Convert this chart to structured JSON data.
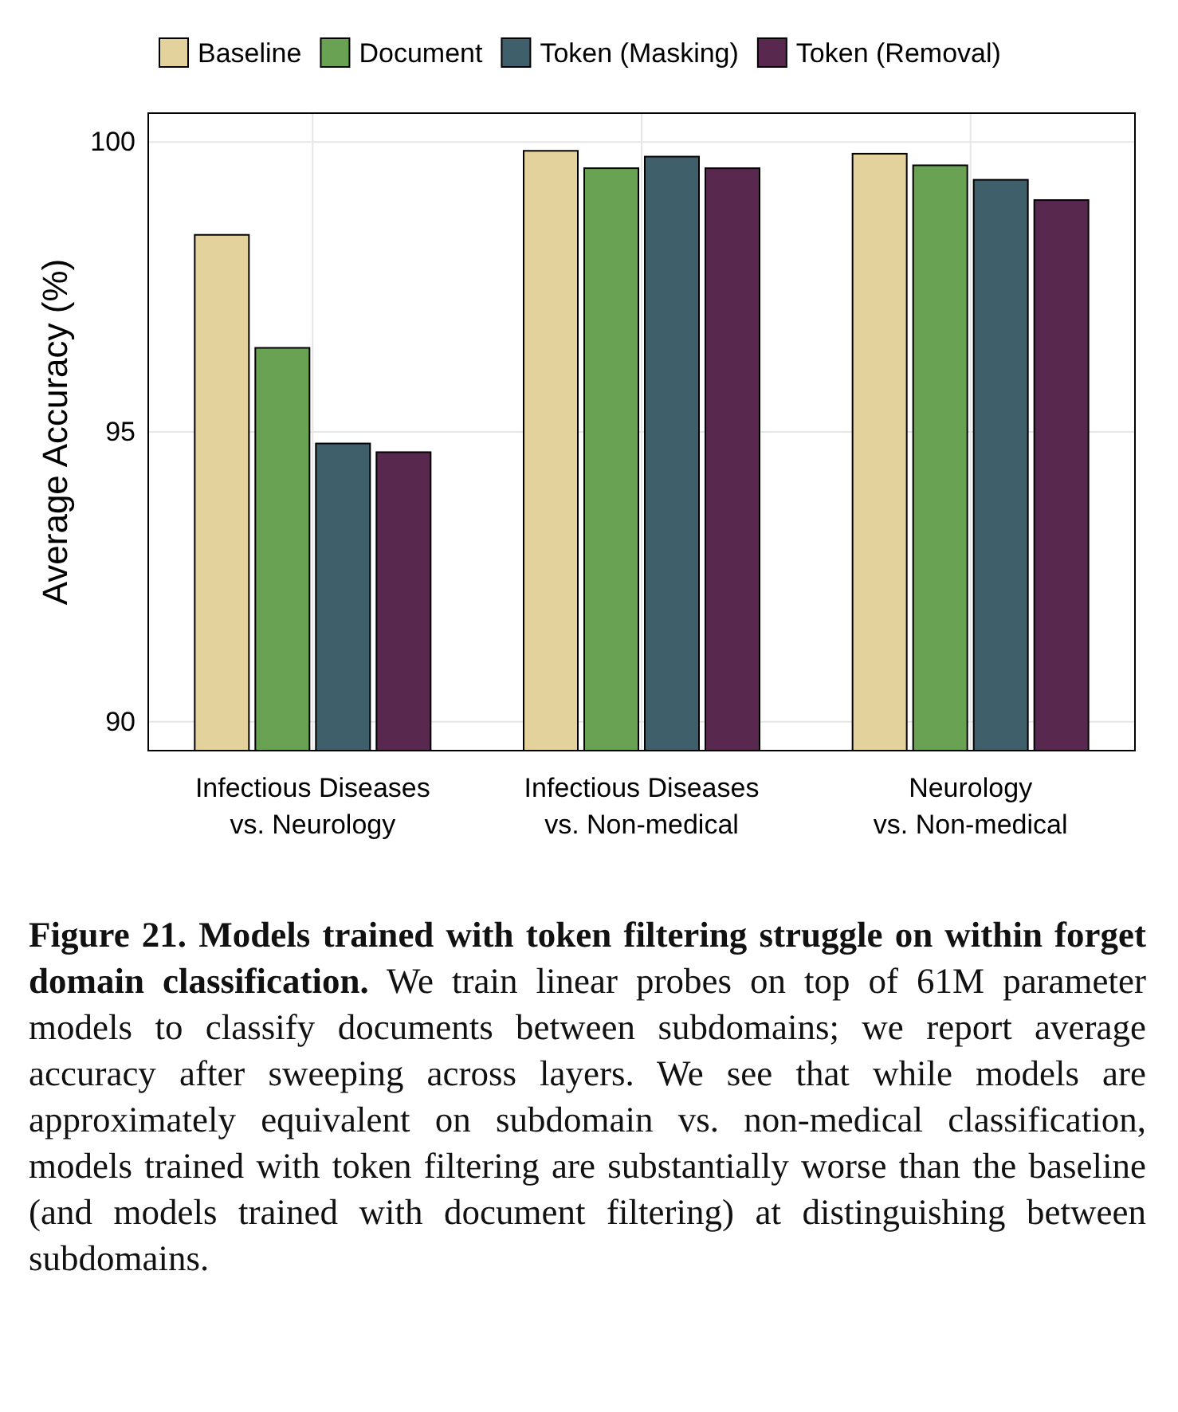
{
  "chart_data": {
    "type": "bar",
    "ylabel": "Average Accuracy (%)",
    "categories": [
      "Infectious Diseases\nvs. Neurology",
      "Infectious Diseases\nvs. Non-medical",
      "Neurology\nvs. Non-medical"
    ],
    "series": [
      {
        "name": "Baseline",
        "color": "#e3d29b",
        "values": [
          98.4,
          99.85,
          99.8
        ]
      },
      {
        "name": "Document",
        "color": "#6aa253",
        "values": [
          96.45,
          99.55,
          99.6
        ]
      },
      {
        "name": "Token (Masking)",
        "color": "#3f5f6b",
        "values": [
          94.8,
          99.75,
          99.35
        ]
      },
      {
        "name": "Token (Removal)",
        "color": "#58284f",
        "values": [
          94.65,
          99.55,
          99.0
        ]
      }
    ],
    "ylim": [
      89.5,
      100.5
    ],
    "yticks": [
      90,
      95,
      100
    ],
    "grid": true,
    "legend": "top",
    "annotations": [
      "Figure 21. Models trained with token filtering struggle on within forget domain classification.",
      "We train linear probes on top of 61M parameter models to classify documents between subdomains; we report average accuracy after sweeping across layers. We see that while models are approximately equivalent on subdomain vs. non-medical classification, models trained with token filtering are substantially worse than the baseline (and models trained with document filtering) at distinguishing between subdomains."
    ]
  }
}
